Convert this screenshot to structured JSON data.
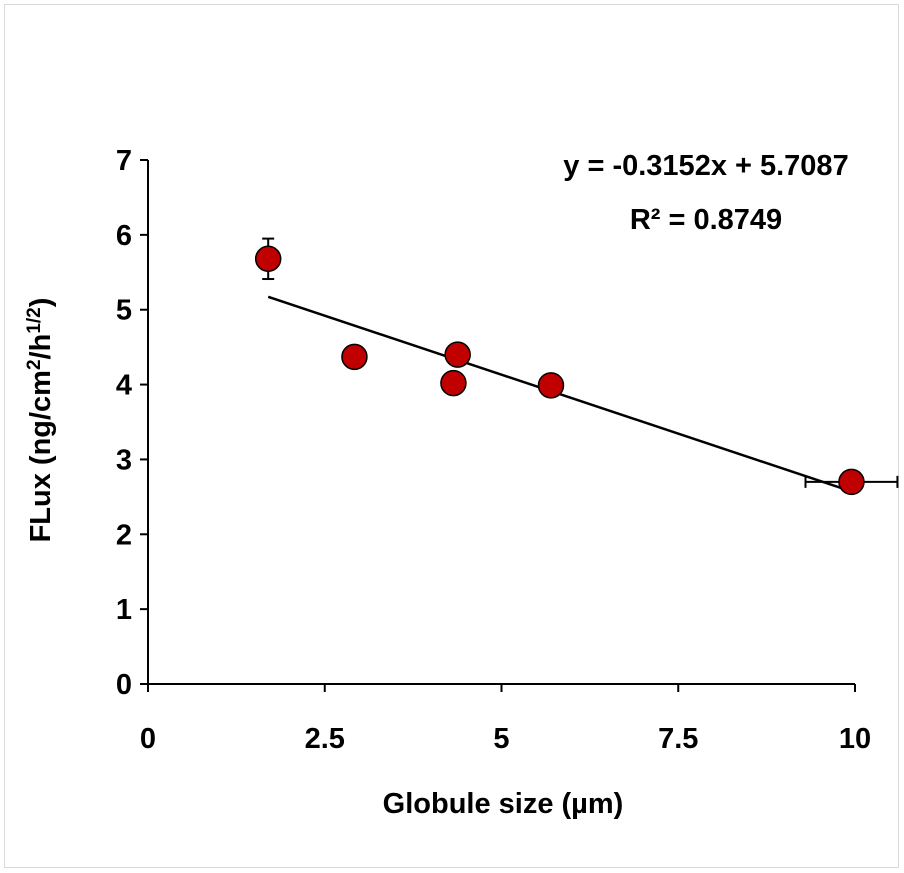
{
  "chart_data": {
    "type": "scatter",
    "xlabel": "Globule size (µm)",
    "ylabel_parts": {
      "base": "FLux (ng/cm",
      "sup1": "2",
      "mid": "/h",
      "sup2": "1/2",
      "end": ")"
    },
    "xlim": [
      0,
      10
    ],
    "ylim": [
      0,
      7
    ],
    "xticks": [
      0,
      2.5,
      5,
      7.5,
      10
    ],
    "xtick_labels": [
      "0",
      "2.5",
      "5",
      "7.5",
      "10"
    ],
    "yticks": [
      0,
      1,
      2,
      3,
      4,
      5,
      6,
      7
    ],
    "ytick_labels": [
      "0",
      "1",
      "2",
      "3",
      "4",
      "5",
      "6",
      "7"
    ],
    "grid": false,
    "marker_color": "#c00000",
    "points": [
      {
        "x": 1.7,
        "y": 5.68,
        "yerr": 0.27,
        "xerr": 0
      },
      {
        "x": 2.92,
        "y": 4.37,
        "yerr": 0,
        "xerr": 0.15
      },
      {
        "x": 4.32,
        "y": 4.02,
        "yerr": 0,
        "xerr": 0.15
      },
      {
        "x": 4.38,
        "y": 4.4,
        "yerr": 0,
        "xerr": 0
      },
      {
        "x": 5.7,
        "y": 3.99,
        "yerr": 0,
        "xerr": 0
      },
      {
        "x": 9.95,
        "y": 2.7,
        "yerr": 0,
        "xerr": 0.65
      }
    ],
    "trendline": {
      "slope": -0.3152,
      "intercept": 5.7087,
      "x_start": 1.7,
      "x_end": 9.95
    },
    "equation": "y = -0.3152x + 5.7087",
    "r2_label": "R² = 0.8749"
  }
}
